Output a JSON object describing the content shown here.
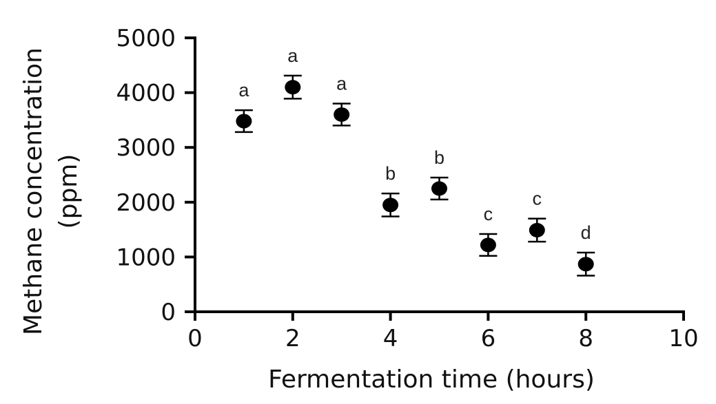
{
  "chart_data": {
    "type": "scatter",
    "title": "",
    "xlabel": "Fermentation time (hours)",
    "ylabel_lines": [
      "Methane concentration",
      "(ppm)"
    ],
    "ylabel": "Methane concentration (ppm)",
    "xlim": [
      0,
      10
    ],
    "ylim": [
      0,
      5000
    ],
    "xticks": [
      0,
      2,
      4,
      6,
      8,
      10
    ],
    "yticks": [
      0,
      1000,
      2000,
      3000,
      4000,
      5000
    ],
    "grid": false,
    "legend": null,
    "marker": "filled-circle",
    "marker_color": "#000000",
    "series": [
      {
        "name": "Methane concentration",
        "x": [
          1,
          2,
          3,
          4,
          5,
          6,
          7,
          8
        ],
        "y": [
          3480,
          4100,
          3600,
          1950,
          2250,
          1220,
          1490,
          870
        ],
        "error": [
          200,
          210,
          200,
          210,
          200,
          200,
          210,
          210
        ],
        "significance_letters": [
          "a",
          "a",
          "a",
          "b",
          "b",
          "c",
          "c",
          "d"
        ]
      }
    ]
  }
}
